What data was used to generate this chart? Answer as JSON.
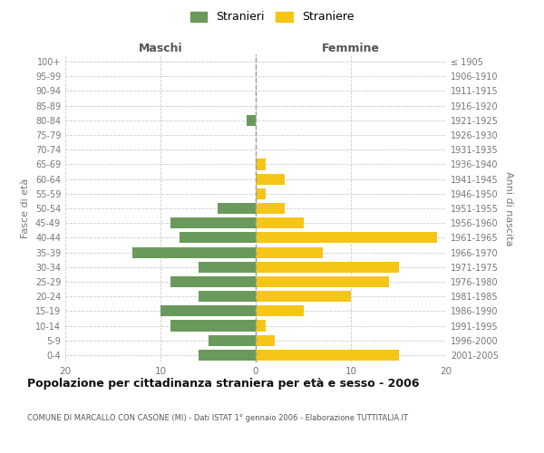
{
  "age_groups": [
    "100+",
    "95-99",
    "90-94",
    "85-89",
    "80-84",
    "75-79",
    "70-74",
    "65-69",
    "60-64",
    "55-59",
    "50-54",
    "45-49",
    "40-44",
    "35-39",
    "30-34",
    "25-29",
    "20-24",
    "15-19",
    "10-14",
    "5-9",
    "0-4"
  ],
  "birth_years": [
    "≤ 1905",
    "1906-1910",
    "1911-1915",
    "1916-1920",
    "1921-1925",
    "1926-1930",
    "1931-1935",
    "1936-1940",
    "1941-1945",
    "1946-1950",
    "1951-1955",
    "1956-1960",
    "1961-1965",
    "1966-1970",
    "1971-1975",
    "1976-1980",
    "1981-1985",
    "1986-1990",
    "1991-1995",
    "1996-2000",
    "2001-2005"
  ],
  "maschi": [
    0,
    0,
    0,
    0,
    1,
    0,
    0,
    0,
    0,
    0,
    4,
    9,
    8,
    13,
    6,
    9,
    6,
    10,
    9,
    5,
    6
  ],
  "femmine": [
    0,
    0,
    0,
    0,
    0,
    0,
    0,
    1,
    3,
    1,
    3,
    5,
    19,
    7,
    15,
    14,
    10,
    5,
    1,
    2,
    15
  ],
  "maschi_color": "#6a9a5b",
  "femmine_color": "#f5c518",
  "background_color": "#ffffff",
  "grid_color": "#cccccc",
  "title": "Popolazione per cittadinanza straniera per età e sesso - 2006",
  "subtitle": "COMUNE DI MARCALLO CON CASONE (MI) - Dati ISTAT 1° gennaio 2006 - Elaborazione TUTTITALIA.IT",
  "ylabel_left": "Fasce di età",
  "ylabel_right": "Anni di nascita",
  "xlabel_left": "Maschi",
  "xlabel_right": "Femmine",
  "legend_maschi": "Stranieri",
  "legend_femmine": "Straniere",
  "xlim": 20,
  "bar_height": 0.75
}
